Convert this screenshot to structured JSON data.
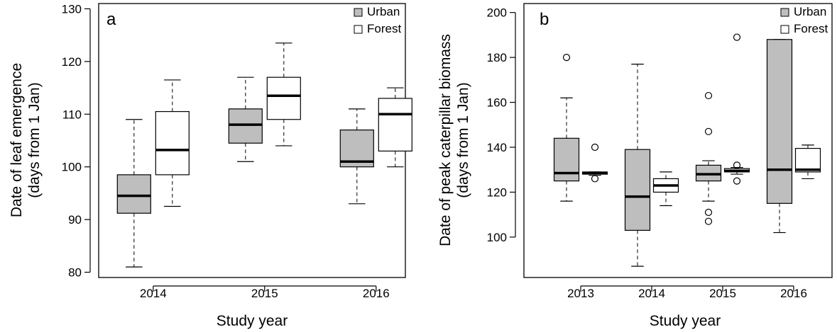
{
  "chart_data": [
    {
      "type": "box",
      "panel_label": "a",
      "xlabel": "Study year",
      "ylabel_lines": [
        "Date of leaf emergence",
        "(days from 1 Jan)"
      ],
      "categories": [
        "2014",
        "2015",
        "2016"
      ],
      "ylim": [
        79,
        131
      ],
      "yticks": [
        80,
        90,
        100,
        110,
        120,
        130
      ],
      "legend": {
        "position": "top-right",
        "entries": [
          "Urban",
          "Forest"
        ]
      },
      "series": [
        {
          "name": "Urban",
          "color": "#bebebe",
          "boxes": [
            {
              "min": 81,
              "q1": 91.2,
              "median": 94.5,
              "q3": 98.5,
              "max": 109,
              "outliers": []
            },
            {
              "min": 101,
              "q1": 104.5,
              "median": 108,
              "q3": 111,
              "max": 117,
              "outliers": []
            },
            {
              "min": 93,
              "q1": 100,
              "median": 101,
              "q3": 107,
              "max": 111,
              "outliers": []
            }
          ]
        },
        {
          "name": "Forest",
          "color": "#ffffff",
          "boxes": [
            {
              "min": 92.5,
              "q1": 98.5,
              "median": 103.2,
              "q3": 110.5,
              "max": 116.5,
              "outliers": []
            },
            {
              "min": 104,
              "q1": 109,
              "median": 113.5,
              "q3": 117,
              "max": 123.5,
              "outliers": []
            },
            {
              "min": 100,
              "q1": 103,
              "median": 110,
              "q3": 113,
              "max": 115,
              "outliers": []
            }
          ]
        }
      ]
    },
    {
      "type": "box",
      "panel_label": "b",
      "xlabel": "Study year",
      "ylabel_lines": [
        "Date of peak caterpillar biomass",
        "(days from 1 Jan)"
      ],
      "categories": [
        "2013",
        "2014",
        "2015",
        "2016"
      ],
      "ylim": [
        82,
        204
      ],
      "yticks": [
        100,
        120,
        140,
        160,
        180,
        200
      ],
      "legend": {
        "position": "top-right",
        "entries": [
          "Urban",
          "Forest"
        ]
      },
      "series": [
        {
          "name": "Urban",
          "color": "#bebebe",
          "boxes": [
            {
              "min": 116,
              "q1": 125,
              "median": 128.5,
              "q3": 144,
              "max": 162,
              "outliers": [
                180
              ]
            },
            {
              "min": 87,
              "q1": 103,
              "median": 118,
              "q3": 139,
              "max": 177,
              "outliers": []
            },
            {
              "min": 116,
              "q1": 125,
              "median": 128,
              "q3": 132,
              "max": 134,
              "outliers": [
                107,
                111,
                147,
                163
              ]
            },
            {
              "min": 102,
              "q1": 115,
              "median": 130,
              "q3": 188,
              "max": 188,
              "outliers": []
            }
          ]
        },
        {
          "name": "Forest",
          "color": "#ffffff",
          "boxes": [
            {
              "min": 127.5,
              "q1": 128,
              "median": 128.5,
              "q3": 129,
              "max": 129,
              "outliers": [
                126,
                140
              ]
            },
            {
              "min": 114,
              "q1": 120,
              "median": 123,
              "q3": 126,
              "max": 129,
              "outliers": []
            },
            {
              "min": 128,
              "q1": 129,
              "median": 129.5,
              "q3": 130.5,
              "max": 131,
              "outliers": [
                125,
                132,
                189
              ]
            },
            {
              "min": 126,
              "q1": 129,
              "median": 130,
              "q3": 139.5,
              "max": 141,
              "outliers": []
            }
          ]
        }
      ]
    }
  ]
}
